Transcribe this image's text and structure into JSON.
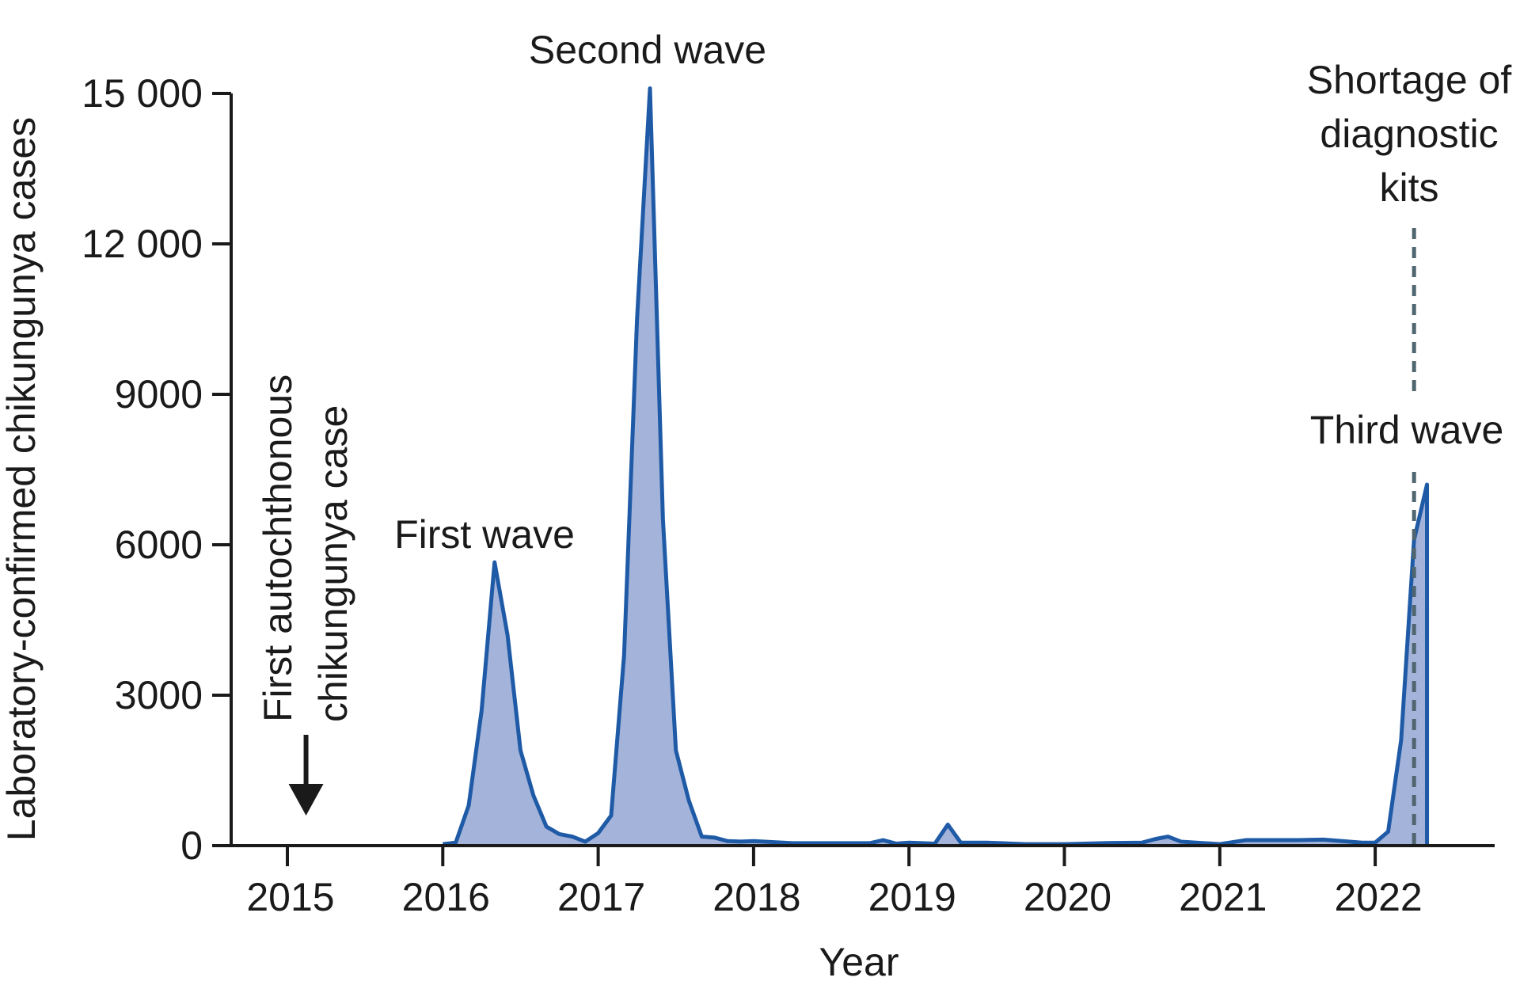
{
  "chart_data": {
    "type": "area",
    "xlabel": "Year",
    "ylabel": "Laboratory-confirmed chikungunya cases",
    "xlim": [
      2014.5,
      2022.75
    ],
    "ylim": [
      0,
      15000
    ],
    "x_ticks": [
      "2015",
      "2016",
      "2017",
      "2018",
      "2019",
      "2020",
      "2021",
      "2022"
    ],
    "y_ticks": [
      "0",
      "3000",
      "6000",
      "9000",
      "12 000",
      "15 000"
    ],
    "y_tick_values": [
      0,
      3000,
      6000,
      9000,
      12000,
      15000
    ],
    "grid": false,
    "fill_color": "#a3b3d9",
    "line_color": "#1f5aa6",
    "series": [
      {
        "x": [
          2016.0,
          2016.0833,
          2016.1667,
          2016.25,
          2016.3333,
          2016.4167,
          2016.5,
          2016.5833,
          2016.6667,
          2016.75,
          2016.8333,
          2016.9167,
          2017.0,
          2017.0833,
          2017.1667,
          2017.25,
          2017.3333,
          2017.4167,
          2017.5,
          2017.5833,
          2017.6667,
          2017.75,
          2017.8333,
          2017.9167,
          2018.0,
          2018.25,
          2018.5,
          2018.75,
          2018.8333,
          2018.9167,
          2019.0,
          2019.1667,
          2019.25,
          2019.3333,
          2019.5,
          2019.75,
          2020.0,
          2020.25,
          2020.5,
          2020.5833,
          2020.6667,
          2020.75,
          2021.0,
          2021.1667,
          2021.5,
          2021.6667,
          2021.9167,
          2022.0,
          2022.0833,
          2022.1667,
          2022.25,
          2022.3333,
          2022.3334
        ],
        "values": [
          30,
          60,
          800,
          2700,
          5650,
          4200,
          1900,
          1000,
          380,
          230,
          180,
          80,
          250,
          600,
          3800,
          10500,
          15100,
          6500,
          1900,
          900,
          180,
          160,
          90,
          80,
          90,
          50,
          50,
          50,
          110,
          40,
          60,
          40,
          420,
          60,
          60,
          30,
          30,
          50,
          60,
          130,
          180,
          80,
          30,
          110,
          110,
          120,
          60,
          60,
          280,
          2100,
          6100,
          7200,
          3900
        ]
      }
    ],
    "annotations": {
      "first_case": "First autochthonous chikungunya case",
      "first_case_line1": "First autochthonous",
      "first_case_line2": "chikungunya case",
      "first_case_x": 2015.12,
      "first_wave": "First wave",
      "second_wave": "Second wave",
      "third_wave": "Third wave",
      "shortage": "Shortage of diagnostic kits",
      "shortage_line1": "Shortage of",
      "shortage_line2": "diagnostic",
      "shortage_line3": "kits",
      "shortage_x": 2022.25,
      "dashed_color": "#4f6670"
    }
  }
}
